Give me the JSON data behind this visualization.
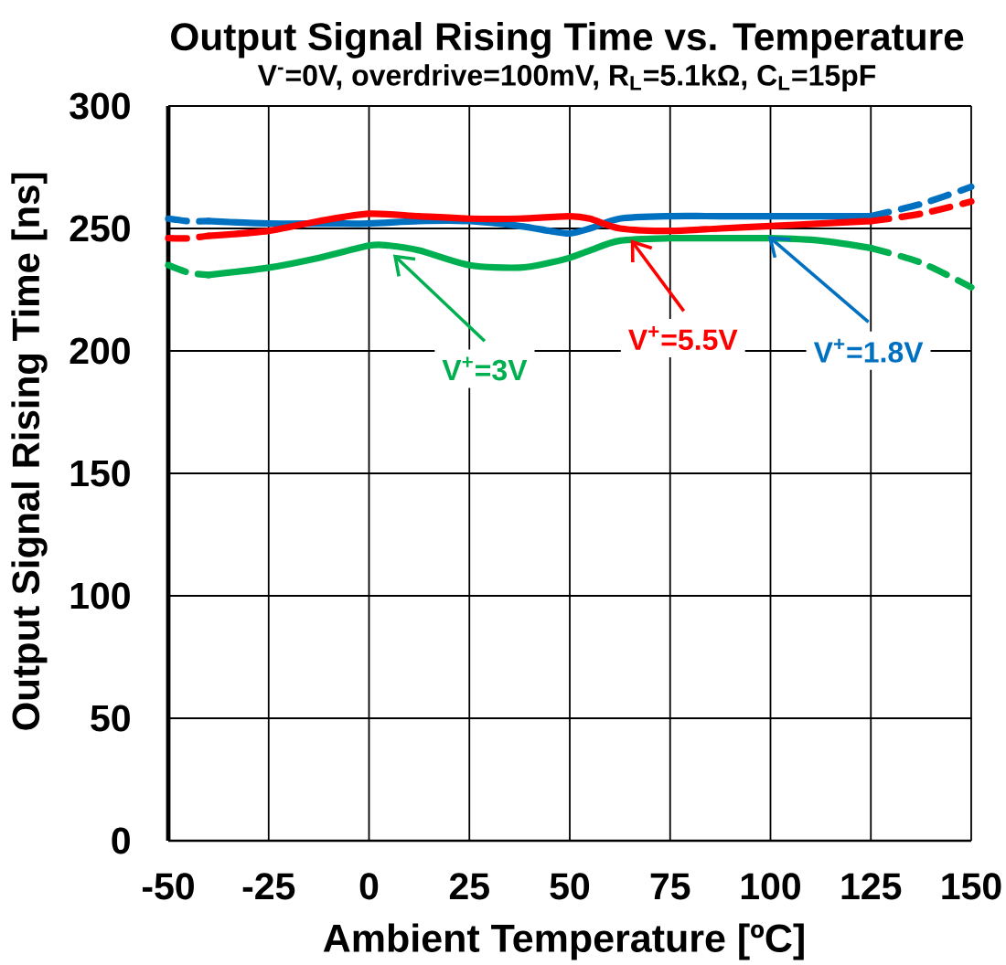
{
  "chart_data": {
    "type": "line",
    "title": "Output Signal Rising Time vs. Temperature",
    "subtitle": "V$^{-}$=0V, overdrive=100mV, R$_{L}$=5.1kΩ, C$_{L}$=15pF",
    "xlabel": "Ambient Temperature [ºC]",
    "ylabel": "Output Signal Rising Time [ns]",
    "xlim": [
      -50,
      150
    ],
    "xticks": [
      -50,
      -25,
      0,
      25,
      50,
      75,
      100,
      125,
      150
    ],
    "ylim": [
      0,
      300
    ],
    "yticks": [
      0,
      50,
      100,
      150,
      200,
      250,
      300
    ],
    "grid": true,
    "marker": "none",
    "line_style": "solid",
    "series": [
      {
        "name": "V$^{+}$=1.8V",
        "color": "#0070c0",
        "x": [
          -40,
          -25,
          -10,
          0,
          12.5,
          25,
          37.5,
          45,
          50,
          55,
          62.5,
          75,
          87.5,
          100,
          112.5,
          125
        ],
        "values": [
          253,
          252,
          252,
          252,
          253,
          253,
          251,
          249,
          248,
          250,
          254,
          255,
          255,
          255,
          255,
          255
        ]
      },
      {
        "name": "V$^{+}$=5.5V",
        "color": "#ff0000",
        "x": [
          -40,
          -25,
          -12.5,
          0,
          12.5,
          25,
          37.5,
          50,
          55,
          62.5,
          75,
          87.5,
          100,
          112.5,
          125
        ],
        "values": [
          247,
          249,
          253,
          256,
          255,
          254,
          254,
          255,
          254,
          250,
          249,
          250,
          251,
          252,
          253
        ]
      },
      {
        "name": "V$^{+}$=3V",
        "color": "#00b050",
        "x": [
          -40,
          -25,
          -12.5,
          0,
          5,
          12.5,
          25,
          37.5,
          45,
          50,
          55,
          62.5,
          75,
          87.5,
          100,
          112.5,
          125
        ],
        "values": [
          231,
          234,
          238,
          243,
          243,
          241,
          235,
          234,
          236,
          238,
          241,
          245,
          246,
          246,
          246,
          245,
          242
        ]
      },
      {
        "color": "#0070c0",
        "line_style": "dashed",
        "x": [
          -50,
          -45,
          -40
        ],
        "values": [
          254,
          253,
          253
        ]
      },
      {
        "color": "#0070c0",
        "line_style": "dashed",
        "x": [
          125,
          137.5,
          150
        ],
        "values": [
          255,
          260,
          267
        ]
      },
      {
        "color": "#ff0000",
        "line_style": "dashed",
        "x": [
          -50,
          -45,
          -40
        ],
        "values": [
          246,
          246,
          247
        ]
      },
      {
        "color": "#ff0000",
        "line_style": "dashed",
        "x": [
          125,
          137.5,
          150
        ],
        "values": [
          253,
          256,
          261
        ]
      },
      {
        "color": "#00b050",
        "line_style": "dashed",
        "x": [
          -50,
          -45,
          -40
        ],
        "values": [
          235,
          232,
          231
        ]
      },
      {
        "color": "#00b050",
        "line_style": "dashed",
        "x": [
          125,
          137.5,
          150
        ],
        "values": [
          242,
          236,
          226
        ]
      }
    ]
  }
}
